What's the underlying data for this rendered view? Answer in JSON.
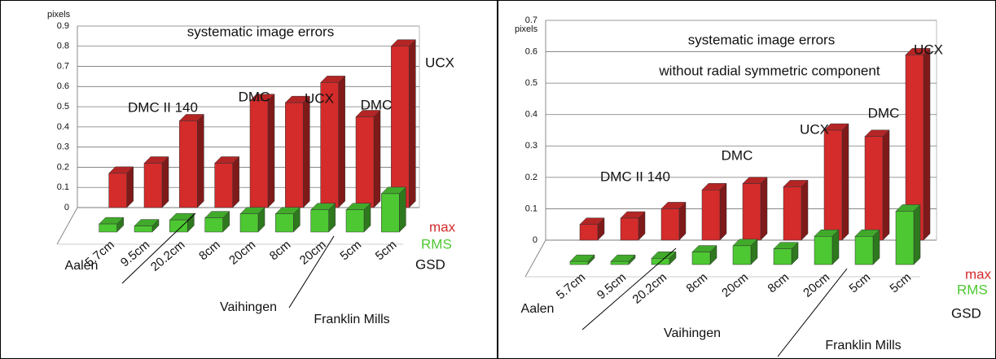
{
  "chart_data": [
    {
      "type": "bar",
      "title": "systematic image errors",
      "y_label": "pixels",
      "x_label": "GSD",
      "categories": [
        "5.7cm",
        "9.5cm",
        "20.2cm",
        "8cm",
        "20cm",
        "8cm",
        "20cm",
        "5cm",
        "5cm"
      ],
      "groups": [
        "Aalen",
        "Vaihingen",
        "Franklin Mills"
      ],
      "annotations": [
        "DMC II 140",
        "DMC",
        "UCX",
        "DMC",
        "UCX"
      ],
      "series": [
        {
          "name": "max",
          "color": "#d42b2b",
          "values": [
            0.17,
            0.22,
            0.43,
            0.22,
            0.53,
            0.52,
            0.62,
            0.45,
            0.8
          ]
        },
        {
          "name": "RMS",
          "color": "#4dc832",
          "values": [
            0.04,
            0.03,
            0.06,
            0.07,
            0.09,
            0.09,
            0.11,
            0.11,
            0.19
          ]
        }
      ],
      "ylim": [
        0,
        0.9
      ],
      "yticks": [
        0,
        0.1,
        0.2,
        0.3,
        0.4,
        0.5,
        0.6,
        0.7,
        0.8,
        0.9
      ],
      "grid": true
    },
    {
      "type": "bar",
      "title": "systematic image errors",
      "subtitle": "without radial symmetric component",
      "y_label": "pixels",
      "x_label": "GSD",
      "categories": [
        "5.7cm",
        "9.5cm",
        "20.2cm",
        "8cm",
        "20cm",
        "8cm",
        "20cm",
        "5cm",
        "5cm"
      ],
      "groups": [
        "Aalen",
        "Vaihingen",
        "Franklin Mills"
      ],
      "annotations": [
        "DMC II 140",
        "DMC",
        "UCX",
        "DMC",
        "UCX"
      ],
      "series": [
        {
          "name": "max",
          "color": "#d42b2b",
          "values": [
            0.05,
            0.07,
            0.1,
            0.16,
            0.18,
            0.17,
            0.35,
            0.33,
            0.59
          ]
        },
        {
          "name": "RMS",
          "color": "#4dc832",
          "values": [
            0.01,
            0.01,
            0.02,
            0.04,
            0.06,
            0.05,
            0.09,
            0.09,
            0.17
          ]
        }
      ],
      "ylim": [
        0,
        0.7
      ],
      "yticks": [
        0,
        0.1,
        0.2,
        0.3,
        0.4,
        0.5,
        0.6,
        0.7
      ],
      "grid": true
    }
  ]
}
